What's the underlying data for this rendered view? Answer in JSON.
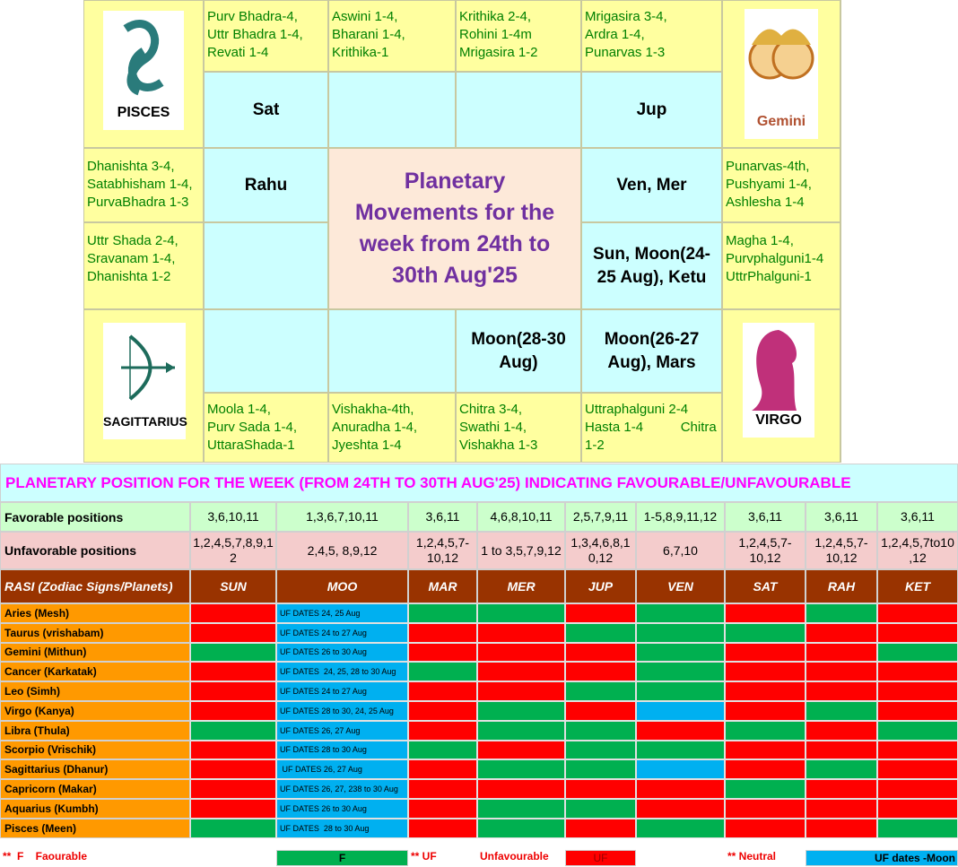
{
  "rasi_chart": {
    "title": [
      "Planetary",
      "Movements for the",
      "week from 24th to",
      "30th Aug'25"
    ],
    "corners": {
      "pisces": "PISCES",
      "gemini": "Gemini",
      "sagittarius": "SAGITTARIUS",
      "virgo": "VIRGO"
    },
    "nakshatras": [
      [
        "Purv Bhadra-4,",
        "Uttr Bhadra 1-4,",
        "Revati 1-4"
      ],
      [
        "Aswini 1-4,",
        "Bharani 1-4,",
        "Krithika-1"
      ],
      [
        "Krithika 2-4,",
        "Rohini 1-4m",
        "Mrigasira 1-2"
      ],
      [
        "Mrigasira 3-4,",
        "Ardra 1-4,",
        "Punarvas 1-3"
      ],
      [
        "Punarvas-4th,",
        "Pushyami 1-4,",
        "Ashlesha 1-4"
      ],
      [
        "Magha 1-4,",
        "Purvphalguni1-4",
        "UttrPhalguni-1"
      ],
      [
        "Uttraphalguni 2-4",
        "Hasta 1-4          Chitra",
        "1-2"
      ],
      [
        "Chitra 3-4,",
        "Swathi 1-4,",
        "Vishakha 1-3"
      ],
      [
        "Vishakha-4th,",
        "Anuradha 1-4,",
        "Jyeshta 1-4"
      ],
      [
        "Moola 1-4,",
        "Purv Sada 1-4,",
        "UttaraShada-1"
      ],
      [
        "Uttr Shada 2-4,",
        "Sravanam 1-4,",
        "Dhanishta 1-2"
      ],
      [
        "Dhanishta 3-4,",
        "Satabhisham 1-4,",
        "PurvaBhadra 1-3"
      ]
    ],
    "planets": [
      [
        "Sat"
      ],
      [
        "Jup"
      ],
      [
        "Ven, Mer"
      ],
      [
        "Sun, Moon(24-",
        "25 Aug), Ketu"
      ],
      [
        "Moon(26-27",
        "Aug), Mars"
      ],
      [
        "Moon(28-30",
        "Aug)"
      ],
      [
        "Rahu"
      ]
    ]
  },
  "table": {
    "title": "PLANETARY POSITION FOR THE WEEK (FROM 24TH TO 30TH AUG'25) INDICATING FAVOURABLE/UNFAVOURABLE",
    "favorable_label": "Favorable positions",
    "favorable": [
      "3,6,10,11",
      "1,3,6,7,10,11",
      "3,6,11",
      "4,6,8,10,11",
      "2,5,7,9,11",
      "1-5,8,9,11,12",
      "3,6,11",
      "3,6,11",
      "3,6,11"
    ],
    "unfavorable_label": "Unfavorable positions",
    "unfavorable": [
      "1,2,4,5,7,8,9,12",
      "2,4,5, 8,9,12",
      "1,2,4,5,7-10,12",
      "1 to 3,5,7,9,12",
      "1,3,4,6,8,10,12",
      "6,7,10",
      "1,2,4,5,7-10,12",
      "1,2,4,5,7-10,12",
      "1,2,4,5,7to10,12"
    ],
    "header_label": "RASI (Zodiac Signs/Planets)",
    "planets": [
      "SUN",
      "MOO",
      "MAR",
      "MER",
      "JUP",
      "VEN",
      "SAT",
      "RAH",
      "KET"
    ],
    "rows": [
      {
        "label": "Aries (Mesh)",
        "moon_note": "UF DATES 24, 25 Aug",
        "colors": [
          "#ff0000",
          "#00b0f0",
          "#00b050",
          "#00b050",
          "#ff0000",
          "#00b050",
          "#ff0000",
          "#00b050",
          "#ff0000"
        ]
      },
      {
        "label": "Taurus (vrishabam)",
        "moon_note": "UF DATES 24 to 27 Aug",
        "colors": [
          "#ff0000",
          "#00b0f0",
          "#ff0000",
          "#ff0000",
          "#00b050",
          "#00b050",
          "#00b050",
          "#ff0000",
          "#ff0000"
        ]
      },
      {
        "label": "Gemini (Mithun)",
        "moon_note": "UF DATES 26 to 30 Aug",
        "colors": [
          "#00b050",
          "#00b0f0",
          "#ff0000",
          "#ff0000",
          "#ff0000",
          "#00b050",
          "#ff0000",
          "#ff0000",
          "#00b050"
        ]
      },
      {
        "label": "Cancer (Karkatak)",
        "moon_note": "UF DATES  24, 25, 28 to 30 Aug",
        "colors": [
          "#ff0000",
          "#00b0f0",
          "#00b050",
          "#ff0000",
          "#ff0000",
          "#00b050",
          "#ff0000",
          "#ff0000",
          "#ff0000"
        ]
      },
      {
        "label": "Leo (Simh)",
        "moon_note": "UF DATES 24 to 27 Aug",
        "colors": [
          "#ff0000",
          "#00b0f0",
          "#ff0000",
          "#ff0000",
          "#00b050",
          "#00b050",
          "#ff0000",
          "#ff0000",
          "#ff0000"
        ]
      },
      {
        "label": "Virgo (Kanya)",
        "moon_note": "UF DATES 28 to 30, 24, 25 Aug",
        "colors": [
          "#ff0000",
          "#00b0f0",
          "#ff0000",
          "#00b050",
          "#ff0000",
          "#00b0f0",
          "#ff0000",
          "#00b050",
          "#ff0000"
        ]
      },
      {
        "label": "Libra (Thula)",
        "moon_note": "UF DATES 26, 27 Aug",
        "colors": [
          "#00b050",
          "#00b0f0",
          "#ff0000",
          "#00b050",
          "#00b050",
          "#ff0000",
          "#00b050",
          "#ff0000",
          "#00b050"
        ]
      },
      {
        "label": "Scorpio (Vrischik)",
        "moon_note": "UF DATES 28 to 30 Aug",
        "colors": [
          "#ff0000",
          "#00b0f0",
          "#00b050",
          "#ff0000",
          "#00b050",
          "#00b050",
          "#ff0000",
          "#ff0000",
          "#ff0000"
        ]
      },
      {
        "label": "Sagittarius (Dhanur)",
        "moon_note": " UF DATES 26, 27 Aug",
        "colors": [
          "#ff0000",
          "#00b0f0",
          "#ff0000",
          "#00b050",
          "#00b050",
          "#00b0f0",
          "#ff0000",
          "#00b050",
          "#ff0000"
        ]
      },
      {
        "label": "Capricorn (Makar)",
        "moon_note": "UF DATES 26, 27, 238 to 30 Aug",
        "colors": [
          "#ff0000",
          "#00b0f0",
          "#ff0000",
          "#ff0000",
          "#ff0000",
          "#ff0000",
          "#00b050",
          "#ff0000",
          "#ff0000"
        ]
      },
      {
        "label": "Aquarius (Kumbh)",
        "moon_note": "UF DATES 26 to 30 Aug",
        "colors": [
          "#ff0000",
          "#00b0f0",
          "#ff0000",
          "#00b050",
          "#00b050",
          "#ff0000",
          "#ff0000",
          "#ff0000",
          "#ff0000"
        ]
      },
      {
        "label": "Pisces (Meen)",
        "moon_note": "UF DATES  28 to 30 Aug",
        "colors": [
          "#00b050",
          "#00b0f0",
          "#ff0000",
          "#00b050",
          "#ff0000",
          "#00b050",
          "#ff0000",
          "#ff0000",
          "#00b050"
        ]
      }
    ],
    "legend": {
      "favourable": "**  F    Faourable",
      "f": "F",
      "uf_mark": "** UF",
      "unfavourable": "Unfavourable",
      "uf": "UF",
      "neutral": "** Neutral",
      "uf_dates": "UF dates -Moon"
    }
  }
}
